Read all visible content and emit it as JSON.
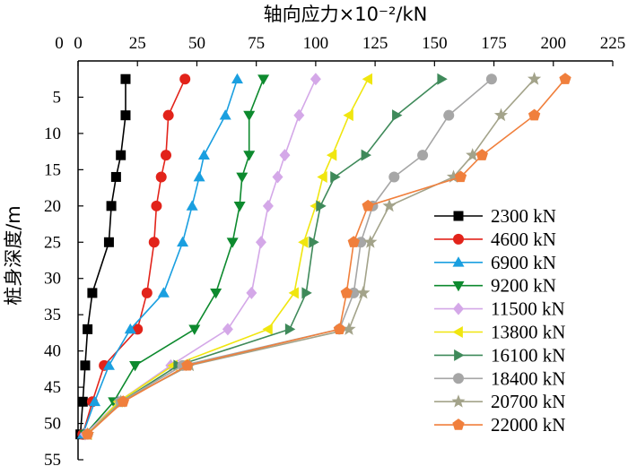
{
  "chart_data": {
    "type": "line",
    "title": "",
    "xlabel": "轴向应力×10⁻²/kN",
    "ylabel": "桩身深度/m",
    "x_axis_position": "top",
    "y_axis_inverted": true,
    "xlim": [
      0,
      225
    ],
    "ylim": [
      0,
      55
    ],
    "x_ticks": [
      0,
      25,
      50,
      75,
      100,
      125,
      150,
      175,
      200,
      225
    ],
    "y_ticks": [
      5,
      10,
      15,
      20,
      25,
      30,
      35,
      40,
      45,
      50,
      55
    ],
    "y_tick_labels": [
      "5",
      "10",
      "15",
      "20",
      "25",
      "30",
      "35",
      "40",
      "45",
      "50",
      "55"
    ],
    "grid": false,
    "legend_position": "right",
    "series": [
      {
        "name": "2300 kN",
        "color": "#000000",
        "marker": "square",
        "points": [
          [
            20,
            2.5
          ],
          [
            20,
            7.5
          ],
          [
            18,
            13
          ],
          [
            16,
            16
          ],
          [
            14,
            20
          ],
          [
            13,
            25
          ],
          [
            6,
            32
          ],
          [
            4,
            37
          ],
          [
            3,
            42
          ],
          [
            2,
            47
          ],
          [
            1,
            51.5
          ]
        ]
      },
      {
        "name": "4600 kN",
        "color": "#e2231a",
        "marker": "circle",
        "points": [
          [
            45,
            2.5
          ],
          [
            38,
            7.5
          ],
          [
            37,
            13
          ],
          [
            35,
            16
          ],
          [
            33,
            20
          ],
          [
            32,
            25
          ],
          [
            29,
            32
          ],
          [
            25,
            37
          ],
          [
            11,
            42
          ],
          [
            6,
            47
          ],
          [
            2,
            51.5
          ]
        ]
      },
      {
        "name": "6900 kN",
        "color": "#1a9fe0",
        "marker": "triangle-up",
        "points": [
          [
            67,
            2.5
          ],
          [
            62,
            7.5
          ],
          [
            53,
            13
          ],
          [
            51,
            16
          ],
          [
            48,
            20
          ],
          [
            44,
            25
          ],
          [
            36,
            32
          ],
          [
            22,
            37
          ],
          [
            13,
            42
          ],
          [
            7,
            47
          ],
          [
            2,
            51.5
          ]
        ]
      },
      {
        "name": "9200 kN",
        "color": "#0d8a2e",
        "marker": "triangle-down",
        "points": [
          [
            78,
            2.5
          ],
          [
            72,
            7.5
          ],
          [
            72,
            13
          ],
          [
            69,
            16
          ],
          [
            68,
            20
          ],
          [
            65,
            25
          ],
          [
            58,
            32
          ],
          [
            49,
            37
          ],
          [
            24,
            42
          ],
          [
            15,
            47
          ],
          [
            3,
            51.5
          ]
        ]
      },
      {
        "name": "11500 kN",
        "color": "#d4a8e8",
        "marker": "diamond",
        "points": [
          [
            100,
            2.5
          ],
          [
            93,
            7.5
          ],
          [
            87,
            13
          ],
          [
            84,
            16
          ],
          [
            80,
            20
          ],
          [
            77,
            25
          ],
          [
            73,
            32
          ],
          [
            63,
            37
          ],
          [
            39,
            42
          ],
          [
            17,
            47
          ],
          [
            3,
            51.5
          ]
        ]
      },
      {
        "name": "13800 kN",
        "color": "#f0e60f",
        "marker": "triangle-left",
        "points": [
          [
            122,
            2.5
          ],
          [
            114,
            7.5
          ],
          [
            107,
            13
          ],
          [
            103,
            16
          ],
          [
            100,
            20
          ],
          [
            95,
            25
          ],
          [
            91,
            32
          ],
          [
            80,
            37
          ],
          [
            40,
            42
          ],
          [
            17,
            47
          ],
          [
            4,
            51.5
          ]
        ]
      },
      {
        "name": "16100 kN",
        "color": "#3f8a5a",
        "marker": "triangle-right",
        "points": [
          [
            153,
            2.5
          ],
          [
            134,
            7.5
          ],
          [
            121,
            13
          ],
          [
            108,
            16
          ],
          [
            102,
            20
          ],
          [
            99,
            25
          ],
          [
            96,
            32
          ],
          [
            89,
            37
          ],
          [
            42,
            42
          ],
          [
            18,
            47
          ],
          [
            4,
            51.5
          ]
        ]
      },
      {
        "name": "18400 kN",
        "color": "#a6a6a6",
        "marker": "circle",
        "points": [
          [
            174,
            2.5
          ],
          [
            156,
            7.5
          ],
          [
            145,
            13
          ],
          [
            133,
            16
          ],
          [
            124,
            20
          ],
          [
            119,
            25
          ],
          [
            116,
            32
          ],
          [
            110,
            37
          ],
          [
            44,
            42
          ],
          [
            18,
            47
          ],
          [
            4,
            51.5
          ]
        ]
      },
      {
        "name": "20700 kN",
        "color": "#a3a38a",
        "marker": "star",
        "points": [
          [
            192,
            2.5
          ],
          [
            178,
            7.5
          ],
          [
            166,
            13
          ],
          [
            158,
            16
          ],
          [
            131,
            20
          ],
          [
            123,
            25
          ],
          [
            120,
            32
          ],
          [
            114,
            37
          ],
          [
            47,
            42
          ],
          [
            18,
            47
          ],
          [
            4,
            51.5
          ]
        ]
      },
      {
        "name": "22000 kN",
        "color": "#f07f3c",
        "marker": "pentagon",
        "points": [
          [
            205,
            2.5
          ],
          [
            192,
            7.5
          ],
          [
            170,
            13
          ],
          [
            161,
            16
          ],
          [
            122,
            20
          ],
          [
            116,
            25
          ],
          [
            113,
            32
          ],
          [
            110,
            37
          ],
          [
            46,
            42
          ],
          [
            19,
            47
          ],
          [
            4,
            51.5
          ]
        ]
      }
    ]
  }
}
